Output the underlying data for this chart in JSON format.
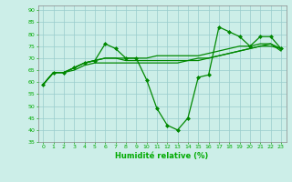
{
  "xlabel": "Humidité relative (%)",
  "xlim": [
    -0.5,
    23.5
  ],
  "ylim": [
    35,
    92
  ],
  "yticks": [
    35,
    40,
    45,
    50,
    55,
    60,
    65,
    70,
    75,
    80,
    85,
    90
  ],
  "xticks": [
    0,
    1,
    2,
    3,
    4,
    5,
    6,
    7,
    8,
    9,
    10,
    11,
    12,
    13,
    14,
    15,
    16,
    17,
    18,
    19,
    20,
    21,
    22,
    23
  ],
  "background_color": "#cceee8",
  "grid_color": "#99cccc",
  "line_color": "#008800",
  "tick_color": "#00aa00",
  "series": [
    [
      59,
      64,
      64,
      66,
      68,
      69,
      76,
      74,
      70,
      70,
      61,
      49,
      42,
      40,
      45,
      62,
      63,
      83,
      81,
      79,
      75,
      79,
      79,
      74
    ],
    [
      59,
      64,
      64,
      66,
      68,
      69,
      70,
      70,
      69,
      69,
      69,
      69,
      69,
      69,
      69,
      69,
      70,
      71,
      72,
      73,
      74,
      75,
      75,
      74
    ],
    [
      59,
      64,
      64,
      66,
      68,
      69,
      70,
      70,
      70,
      70,
      70,
      71,
      71,
      71,
      71,
      71,
      72,
      73,
      74,
      75,
      75,
      76,
      76,
      74
    ],
    [
      59,
      64,
      64,
      65,
      67,
      68,
      68,
      68,
      68,
      68,
      68,
      68,
      68,
      68,
      69,
      70,
      70,
      71,
      72,
      73,
      74,
      75,
      76,
      73
    ]
  ]
}
